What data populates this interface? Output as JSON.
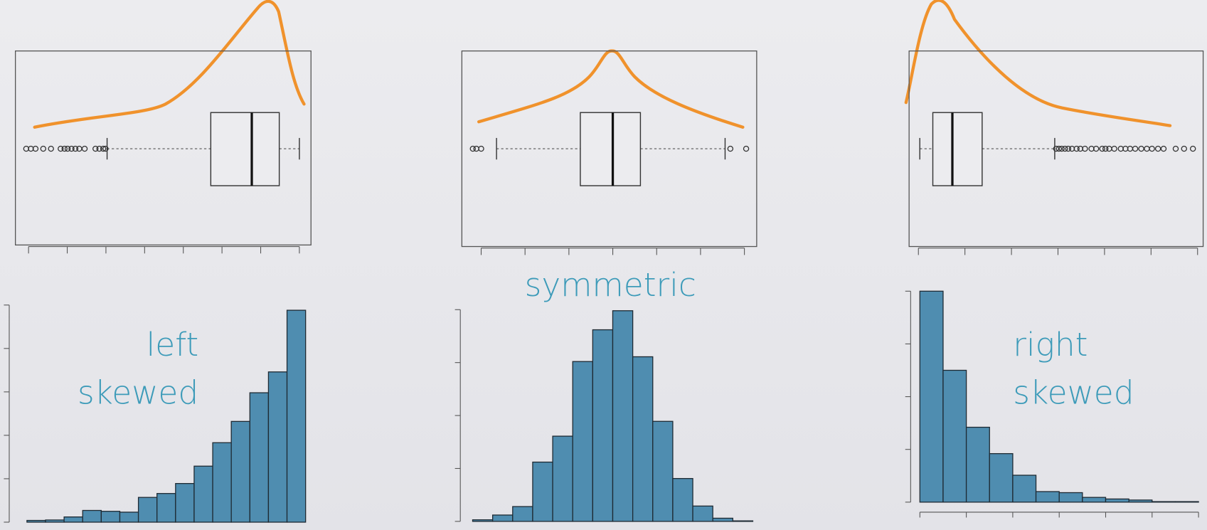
{
  "chart_data": [
    {
      "type": "boxplot",
      "xlim": [
        -0.34,
        7.3
      ],
      "xticks": [
        0,
        1,
        2,
        3,
        4,
        5,
        6,
        7
      ],
      "min": 2.03,
      "q1": 4.71,
      "median": 5.77,
      "q3": 6.48,
      "max": 7.0,
      "outliers": [
        -0.06,
        0.06,
        0.18,
        0.38,
        0.58,
        0.83,
        0.93,
        1.01,
        1.11,
        1.21,
        1.31,
        1.45,
        1.73,
        1.83,
        1.93,
        1.99
      ]
    },
    {
      "type": "boxplot",
      "xlim": [
        -0.44,
        6.28
      ],
      "xticks": [
        0,
        1,
        2,
        3,
        4,
        5,
        6
      ],
      "min": 0.35,
      "q1": 2.26,
      "median": 3.0,
      "q3": 3.63,
      "max": 5.56,
      "outliers": [
        -0.19,
        -0.11,
        0.0,
        5.68,
        6.04
      ]
    },
    {
      "type": "boxplot",
      "xlim": [
        -0.2,
        6.12
      ],
      "xticks": [
        0,
        1,
        2,
        3,
        4,
        5,
        6
      ],
      "min": 0.03,
      "q1": 0.31,
      "median": 0.73,
      "q3": 1.37,
      "max": 2.93,
      "outliers": [
        2.96,
        3.02,
        3.08,
        3.15,
        3.22,
        3.3,
        3.4,
        3.48,
        3.58,
        3.72,
        3.82,
        3.95,
        4.02,
        4.1,
        4.21,
        4.35,
        4.45,
        4.55,
        4.66,
        4.79,
        4.91,
        5.02,
        5.15,
        5.27,
        5.53,
        5.71,
        5.9
      ]
    },
    {
      "type": "histogram",
      "annotation": [
        "left",
        "skewed"
      ],
      "color": "#4f8db0",
      "bins": [
        0,
        1,
        2,
        3,
        4,
        5,
        6,
        7,
        8,
        9,
        10,
        11,
        12,
        13,
        14,
        15
      ],
      "values": [
        0.04,
        0.05,
        0.12,
        0.27,
        0.25,
        0.23,
        0.57,
        0.66,
        0.89,
        1.29,
        1.83,
        2.32,
        2.98,
        3.46,
        4.88
      ],
      "xlim": [
        0,
        15
      ],
      "ylim": [
        0,
        5
      ],
      "yticks": [
        0,
        1,
        2,
        3,
        4,
        5
      ]
    },
    {
      "type": "histogram",
      "annotation": [
        "symmetric"
      ],
      "color": "#4f8db0",
      "bins": [
        0,
        1,
        2,
        3,
        4,
        5,
        6,
        7,
        8,
        9,
        10,
        11,
        12,
        13,
        14
      ],
      "values": [
        0.03,
        0.12,
        0.28,
        1.12,
        1.61,
        3.02,
        3.62,
        3.98,
        3.11,
        1.89,
        0.81,
        0.29,
        0.06,
        0.01
      ],
      "xlim": [
        0,
        14
      ],
      "ylim": [
        0,
        4
      ],
      "yticks": [
        0,
        1,
        2,
        3,
        4
      ]
    },
    {
      "type": "histogram",
      "annotation": [
        "right",
        "skewed"
      ],
      "color": "#4f8db0",
      "bins": [
        0,
        1,
        2,
        3,
        4,
        5,
        6,
        7,
        8,
        9,
        10,
        11,
        12
      ],
      "values": [
        4.0,
        2.5,
        1.42,
        0.92,
        0.51,
        0.2,
        0.18,
        0.09,
        0.06,
        0.04,
        0.01,
        0.01
      ],
      "xlim": [
        0,
        12
      ],
      "ylim": [
        0,
        4
      ],
      "yticks": [
        0,
        1,
        2,
        3,
        4
      ],
      "xticks": [
        0,
        2,
        4,
        6,
        8,
        10,
        12
      ]
    }
  ]
}
